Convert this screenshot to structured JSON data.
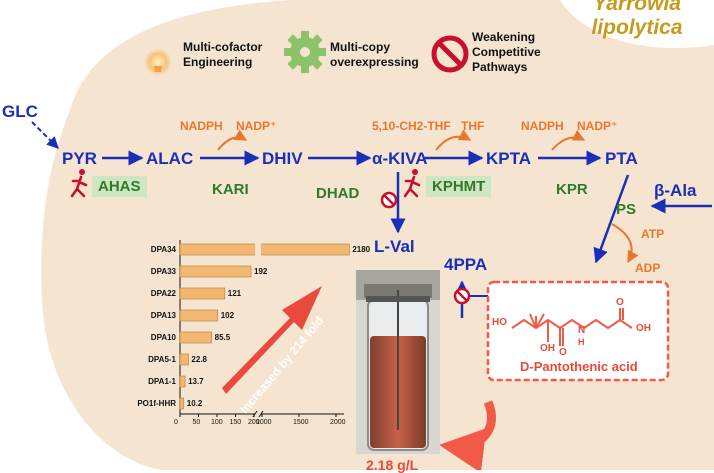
{
  "species": {
    "line1": "Yarrowia",
    "line2": "lipolytica"
  },
  "legend": {
    "cofactor": "Multi-cofactor Engineering",
    "multicopy": "Multi-copy overexpressing",
    "weakening": "Weakening Competitive Pathways"
  },
  "metabolites": {
    "glc": "GLC",
    "pyr": "PYR",
    "alac": "ALAC",
    "dhiv": "DHIV",
    "kiva": "α-KIVA",
    "kpta": "KPTA",
    "pta": "PTA",
    "bala": "β-Ala",
    "lval": "L-Val",
    "ppa": "4PPA"
  },
  "enzymes": {
    "ahas": "AHAS",
    "kari": "KARI",
    "dhad": "DHAD",
    "kphmt": "KPHMT",
    "kpr": "KPR",
    "ps": "PS"
  },
  "cofactors": {
    "nadph1": "NADPH",
    "nadp1": "NADP⁺",
    "thf_donor": "5,10-CH2-THF",
    "thf": "THF",
    "nadph2": "NADPH",
    "nadp2": "NADP⁺",
    "atp": "ATP",
    "adp": "ADP"
  },
  "product": {
    "name": "D-Pantothenic acid",
    "oh1": "HO",
    "oh2": "OH",
    "oh3": "OH",
    "nh": "N",
    "h": "H",
    "o1": "O",
    "o2": "O"
  },
  "titer": "2.18 g/L",
  "colors": {
    "metabolite": "#1a2fb8",
    "enzyme": "#2f7a2a",
    "cofactor": "#e8772e",
    "product": "#e84a3a",
    "bar": "#f2b872",
    "cell": "#f5e5d0"
  },
  "chart_data": {
    "type": "bar",
    "orientation": "horizontal",
    "categories": [
      "DPA34",
      "DPA33",
      "DPA22",
      "DPA13",
      "DPA10",
      "DPA5-1",
      "DPA1-1",
      "PO1f-HHR"
    ],
    "values": [
      2180,
      192,
      121,
      102,
      85.5,
      22.8,
      13.7,
      10.2
    ],
    "value_labels": [
      "2180",
      "192",
      "121",
      "102",
      "85.5",
      "22.8",
      "13.7",
      "10.2"
    ],
    "x_ticks": [
      "0",
      "50",
      "100",
      "150",
      "200",
      "1000",
      "1500",
      "2000"
    ],
    "axis_break": true,
    "annotation": "Increased by 214 fold"
  }
}
